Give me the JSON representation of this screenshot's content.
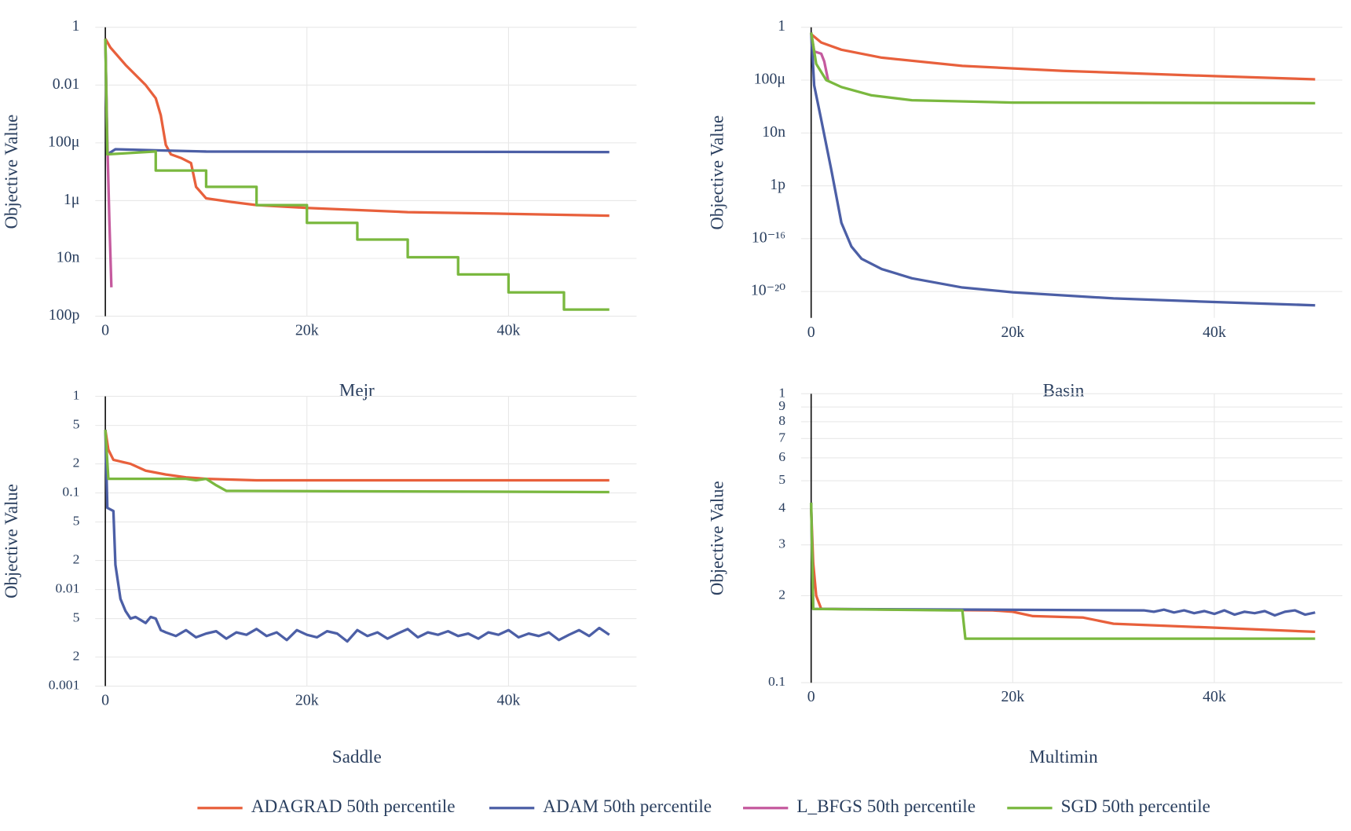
{
  "chart_data": [
    {
      "type": "line",
      "title": "Mejr",
      "y_label": "Objective Value",
      "yscale": "log",
      "grid": true,
      "xlim": [
        -1000,
        52700
      ],
      "ylim": [
        1e-10,
        1
      ],
      "xticks": [
        0,
        {
          "value": 20000,
          "label": "20k"
        },
        {
          "value": 40000,
          "label": "40k"
        }
      ],
      "yticks": [
        1,
        0.01,
        {
          "value": 0.0001,
          "label": "100μ"
        },
        {
          "value": 1e-06,
          "label": "1μ"
        },
        {
          "value": 1e-08,
          "label": "10n"
        },
        {
          "value": 1e-10,
          "label": "100p"
        }
      ],
      "series": [
        {
          "name": "ADAGRAD 50th percentile",
          "color": "#e8603c",
          "x": [
            0,
            500,
            2000,
            4000,
            5000,
            5500,
            6000,
            6500,
            7500,
            8500,
            9000,
            10000,
            12500,
            15000,
            20000,
            30000,
            40000,
            50000
          ],
          "values": [
            0.4,
            0.2,
            0.05,
            0.01,
            0.0035,
            0.0009,
            8.5e-05,
            4e-05,
            3e-05,
            2e-05,
            3e-06,
            1.2e-06,
            9e-07,
            7e-07,
            5.6e-07,
            4e-07,
            3.5e-07,
            3e-07
          ]
        },
        {
          "name": "ADAM 50th percentile",
          "color": "#4c5fa6",
          "x": [
            0,
            200,
            1000,
            5000,
            10000,
            50000
          ],
          "values": [
            0.4,
            4e-05,
            6e-05,
            5.5e-05,
            5e-05,
            4.8e-05
          ]
        },
        {
          "name": "L_BFGS 50th percentile",
          "color": "#c55a9e",
          "x": [
            0,
            200,
            400,
            600
          ],
          "values": [
            0.4,
            0.0001,
            2e-07,
            1e-09
          ]
        },
        {
          "name": "SGD 50th percentile",
          "color": "#7ab83f",
          "x": [
            0,
            200,
            5000,
            5000,
            10000,
            10000,
            15000,
            15000,
            20000,
            20000,
            25000,
            25000,
            30000,
            30000,
            35000,
            35000,
            40000,
            40000,
            45500,
            45500,
            50000
          ],
          "values": [
            0.4,
            4e-05,
            5e-05,
            1.1e-05,
            1.1e-05,
            3e-06,
            3e-06,
            7e-07,
            7e-07,
            1.7e-07,
            1.7e-07,
            4.5e-08,
            4.5e-08,
            1.1e-08,
            1.1e-08,
            2.8e-09,
            2.8e-09,
            6.7e-10,
            6.7e-10,
            1.7e-10,
            1.7e-10
          ]
        }
      ]
    },
    {
      "type": "line",
      "title": "Basin",
      "y_label": "Objective Value",
      "yscale": "log",
      "grid": true,
      "xlim": [
        -1000,
        52700
      ],
      "ylim": [
        1e-22,
        1
      ],
      "xticks": [
        0,
        {
          "value": 20000,
          "label": "20k"
        },
        {
          "value": 40000,
          "label": "40k"
        }
      ],
      "yticks": [
        1,
        {
          "value": 0.0001,
          "label": "100μ"
        },
        {
          "value": 1e-08,
          "label": "10n"
        },
        {
          "value": 1e-12,
          "label": "1p"
        },
        {
          "value": 1e-16,
          "label": "10⁻¹⁶"
        },
        {
          "value": 1e-20,
          "label": "10⁻²⁰"
        }
      ],
      "series": [
        {
          "name": "ADAGRAD 50th percentile",
          "color": "#e8603c",
          "x": [
            0,
            1000,
            3000,
            7000,
            15000,
            25000,
            40000,
            50000
          ],
          "values": [
            0.3,
            0.07,
            0.02,
            0.005,
            0.0012,
            0.0005,
            0.0002,
            0.000115
          ]
        },
        {
          "name": "ADAM 50th percentile",
          "color": "#4c5fa6",
          "x": [
            0,
            300,
            1000,
            2000,
            3000,
            4000,
            5000,
            7000,
            10000,
            15000,
            20000,
            30000,
            40000,
            50000
          ],
          "values": [
            0.4,
            4e-05,
            1e-07,
            1.6e-11,
            1.6e-15,
            2.5e-17,
            3e-18,
            5e-19,
            1e-19,
            2e-20,
            8.7e-21,
            3e-21,
            1.6e-21,
            9e-22
          ]
        },
        {
          "name": "L_BFGS 50th percentile",
          "color": "#c55a9e",
          "x": [
            0,
            300,
            1000,
            1300,
            1700
          ],
          "values": [
            0.4,
            0.015,
            0.01,
            0.0026,
            8.5e-05
          ]
        },
        {
          "name": "SGD 50th percentile",
          "color": "#7ab83f",
          "x": [
            0,
            500,
            1500,
            3000,
            6000,
            10000,
            20000,
            50000
          ],
          "values": [
            0.4,
            0.0017,
            0.0001,
            3e-05,
            7e-06,
            3e-06,
            2e-06,
            1.8e-06
          ]
        }
      ]
    },
    {
      "type": "line",
      "title": "Saddle",
      "y_label": "Objective Value",
      "yscale": "log",
      "grid": true,
      "xlim": [
        -1000,
        52700
      ],
      "ylim": [
        0.001,
        1
      ],
      "xticks": [
        0,
        {
          "value": 20000,
          "label": "20k"
        },
        {
          "value": 40000,
          "label": "40k"
        }
      ],
      "yticks": [
        1,
        {
          "value": 0.5,
          "label": "5"
        },
        {
          "value": 0.2,
          "label": "2"
        },
        0.1,
        {
          "value": 0.05,
          "label": "5"
        },
        {
          "value": 0.02,
          "label": "2"
        },
        0.01,
        {
          "value": 0.005,
          "label": "5"
        },
        {
          "value": 0.002,
          "label": "2"
        },
        0.001
      ],
      "series": [
        {
          "name": "ADAGRAD 50th percentile",
          "color": "#e8603c",
          "x": [
            0,
            300,
            800,
            2500,
            4000,
            6000,
            8000,
            10000,
            15000,
            50000
          ],
          "values": [
            0.45,
            0.28,
            0.22,
            0.2,
            0.17,
            0.155,
            0.145,
            0.14,
            0.135,
            0.135
          ]
        },
        {
          "name": "ADAM 50th percentile",
          "color": "#4c5fa6",
          "x": [
            0,
            200,
            800,
            1000,
            1500,
            2000,
            2500,
            3000,
            4000,
            4500,
            5000,
            5500,
            6000,
            7000,
            8000,
            9000,
            10000,
            11000,
            12000,
            13000,
            14000,
            15000,
            16000,
            17000,
            18000,
            19000,
            20000,
            21000,
            22000,
            23000,
            24000,
            25000,
            26000,
            27000,
            28000,
            29000,
            30000,
            31000,
            32000,
            33000,
            34000,
            35000,
            36000,
            37000,
            38000,
            39000,
            40000,
            41000,
            42000,
            43000,
            44000,
            45000,
            46000,
            47000,
            48000,
            49000,
            50000
          ],
          "values": [
            0.45,
            0.07,
            0.065,
            0.018,
            0.008,
            0.006,
            0.005,
            0.0052,
            0.0045,
            0.0052,
            0.005,
            0.0038,
            0.0036,
            0.0033,
            0.0038,
            0.0032,
            0.0035,
            0.0037,
            0.0031,
            0.0036,
            0.0034,
            0.0039,
            0.0033,
            0.0036,
            0.003,
            0.0038,
            0.0034,
            0.0032,
            0.0037,
            0.0035,
            0.0029,
            0.0038,
            0.0033,
            0.0036,
            0.0031,
            0.0035,
            0.0039,
            0.0032,
            0.0036,
            0.0034,
            0.0037,
            0.0033,
            0.0035,
            0.0031,
            0.0036,
            0.0034,
            0.0038,
            0.0032,
            0.0035,
            0.0033,
            0.0036,
            0.003,
            0.0034,
            0.0038,
            0.0033,
            0.004,
            0.0034
          ]
        },
        {
          "name": "SGD 50th percentile",
          "color": "#7ab83f",
          "x": [
            0,
            300,
            8000,
            9000,
            10000,
            11000,
            12000,
            13000,
            50000
          ],
          "values": [
            0.45,
            0.14,
            0.14,
            0.135,
            0.14,
            0.12,
            0.105,
            0.105,
            0.102
          ]
        }
      ]
    },
    {
      "type": "line",
      "title": "Multimin",
      "y_label": "Objective Value",
      "yscale": "log",
      "grid": true,
      "xlim": [
        -1000,
        52700
      ],
      "ylim": [
        0.1,
        1
      ],
      "xticks": [
        0,
        {
          "value": 20000,
          "label": "20k"
        },
        {
          "value": 40000,
          "label": "40k"
        }
      ],
      "yticks": [
        1,
        {
          "value": 0.9,
          "label": "9"
        },
        {
          "value": 0.8,
          "label": "8"
        },
        {
          "value": 0.7,
          "label": "7"
        },
        {
          "value": 0.6,
          "label": "6"
        },
        {
          "value": 0.5,
          "label": "5"
        },
        {
          "value": 0.4,
          "label": "4"
        },
        {
          "value": 0.3,
          "label": "3"
        },
        {
          "value": 0.2,
          "label": "2"
        },
        0.1
      ],
      "series": [
        {
          "name": "ADAGRAD 50th percentile",
          "color": "#e8603c",
          "x": [
            0,
            200,
            500,
            1000,
            18000,
            20000,
            22000,
            27000,
            30000,
            40000,
            50000
          ],
          "values": [
            0.4,
            0.26,
            0.2,
            0.18,
            0.178,
            0.176,
            0.17,
            0.168,
            0.16,
            0.155,
            0.15
          ]
        },
        {
          "name": "ADAM 50th percentile",
          "color": "#4c5fa6",
          "x": [
            0,
            200,
            33000,
            34000,
            35000,
            36000,
            37000,
            38000,
            39000,
            40000,
            41000,
            42000,
            43000,
            44000,
            45000,
            46000,
            47000,
            48000,
            49000,
            50000
          ],
          "values": [
            0.42,
            0.18,
            0.178,
            0.176,
            0.179,
            0.175,
            0.178,
            0.174,
            0.177,
            0.173,
            0.178,
            0.172,
            0.176,
            0.174,
            0.177,
            0.171,
            0.176,
            0.178,
            0.172,
            0.175
          ]
        },
        {
          "name": "SGD 50th percentile",
          "color": "#7ab83f",
          "x": [
            0,
            200,
            14000,
            15000,
            15300,
            50000
          ],
          "values": [
            0.42,
            0.18,
            0.178,
            0.178,
            0.142,
            0.142
          ]
        }
      ]
    }
  ]
}
